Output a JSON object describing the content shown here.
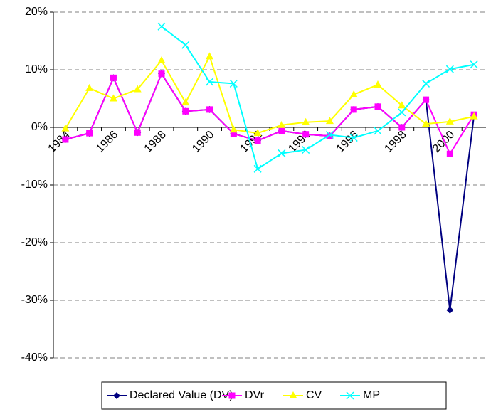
{
  "chart_data": {
    "type": "line",
    "categories": [
      "1984",
      null,
      "1986",
      null,
      "1988",
      null,
      "1990",
      null,
      "1992",
      null,
      "1994",
      null,
      "1996",
      null,
      "1998",
      null,
      "2000",
      null
    ],
    "series": [
      {
        "name": "Declared Value (DV)",
        "color": "#000080",
        "marker": "diamond",
        "values": [
          -2.1,
          -1.0,
          8.6,
          -0.9,
          9.3,
          2.8,
          3.1,
          -1.1,
          -2.3,
          -0.6,
          -1.2,
          -1.5,
          3.1,
          3.6,
          0,
          4.8,
          -31.7,
          2.0
        ]
      },
      {
        "name": "DVr",
        "color": "#ff00ff",
        "marker": "square",
        "values": [
          -2.1,
          -1.0,
          8.6,
          -0.9,
          9.3,
          2.8,
          3.1,
          -1.1,
          -2.3,
          -0.6,
          -1.2,
          -1.5,
          3.1,
          3.6,
          0,
          4.8,
          -4.6,
          2.2
        ]
      },
      {
        "name": "CV",
        "color": "#ffff00",
        "marker": "triangle",
        "values": [
          -0.2,
          6.8,
          5.0,
          6.6,
          11.6,
          4.3,
          12.3,
          -0.4,
          -1.0,
          0.4,
          0.9,
          1.1,
          5.7,
          7.4,
          3.8,
          0.6,
          1.0,
          1.9
        ]
      },
      {
        "name": "MP",
        "color": "#00ffff",
        "marker": "x",
        "values": [
          null,
          null,
          null,
          null,
          17.5,
          14.3,
          7.9,
          7.6,
          -7.2,
          -4.5,
          -3.9,
          -1.3,
          -1.8,
          -0.6,
          2.6,
          7.6,
          10.1,
          10.9
        ]
      }
    ],
    "ylim": [
      -40,
      20
    ],
    "yticks": [
      {
        "value": -40,
        "label": "-40%"
      },
      {
        "value": -30,
        "label": "-30%"
      },
      {
        "value": -20,
        "label": "-20%"
      },
      {
        "value": -10,
        "label": "-10%"
      },
      {
        "value": 0,
        "label": "0%"
      },
      {
        "value": 10,
        "label": "10%"
      },
      {
        "value": 20,
        "label": "20%"
      }
    ],
    "grid": true,
    "legend": "bottom"
  }
}
